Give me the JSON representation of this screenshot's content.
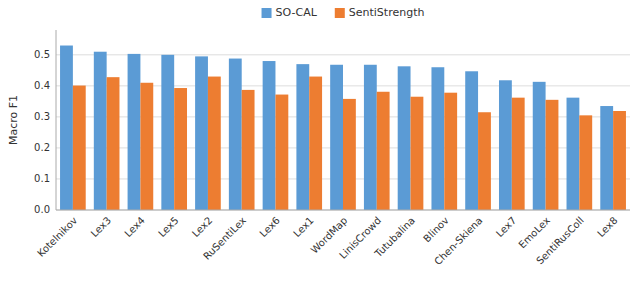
{
  "chart_data": {
    "type": "bar",
    "categories": [
      "Kotelnikov",
      "Lex3",
      "Lex4",
      "Lex5",
      "Lex2",
      "RuSentiLex",
      "Lex6",
      "Lex1",
      "WordMap",
      "LinisCrowd",
      "Tutubalina",
      "Blinov",
      "Chen-Skiena",
      "Lex7",
      "EmoLex",
      "SentiRusColl",
      "Lex8"
    ],
    "series": [
      {
        "name": "SO-CAL",
        "color": "#5b9bd5",
        "values": [
          0.53,
          0.51,
          0.503,
          0.5,
          0.495,
          0.488,
          0.48,
          0.47,
          0.468,
          0.468,
          0.463,
          0.46,
          0.447,
          0.418,
          0.413,
          0.362,
          0.335
        ]
      },
      {
        "name": "SentiStrength",
        "color": "#ed7d31",
        "values": [
          0.401,
          0.428,
          0.41,
          0.393,
          0.43,
          0.387,
          0.372,
          0.43,
          0.358,
          0.381,
          0.365,
          0.378,
          0.315,
          0.362,
          0.355,
          0.305,
          0.319
        ]
      }
    ],
    "ylabel": "Macro F1",
    "ylim": [
      0,
      0.58
    ],
    "yticks": [
      {
        "value": 0.0,
        "label": "0.0"
      },
      0.1,
      0.2,
      0.3,
      0.4,
      0.5
    ],
    "grid": true,
    "legend": "top"
  }
}
